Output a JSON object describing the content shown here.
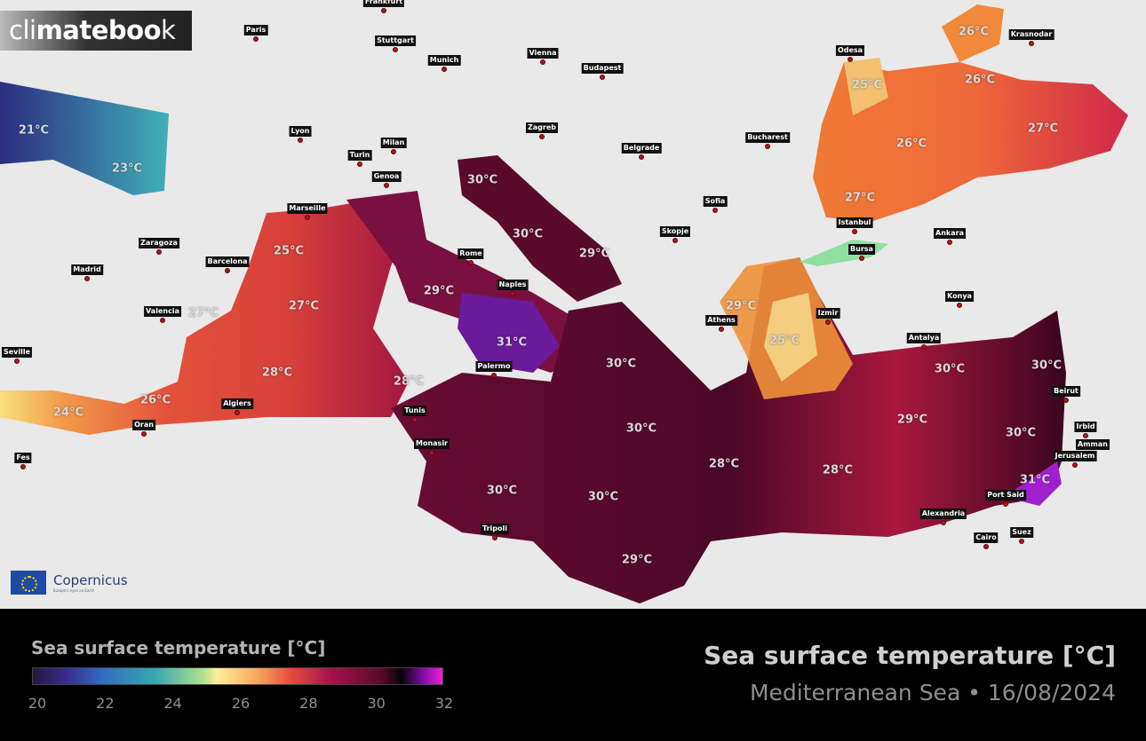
{
  "brand": {
    "logo_light": "cli",
    "logo_bold": "mateboo",
    "logo_end": "k",
    "partner": "Copernicus",
    "partner_tagline": "Europe's eyes on Earth"
  },
  "colors": {
    "accent_cold": "#2f6dc2",
    "accent_warm": "#e54b3c",
    "accent_hot": "#5a0a2a",
    "city_dot": "#b0161c"
  },
  "cities": [
    "Frankfurt",
    "Paris",
    "Stuttgart",
    "Munich",
    "Vienna",
    "Budapest",
    "Lyon",
    "Milan",
    "Turin",
    "Zagreb",
    "Belgrade",
    "Bucharest",
    "Genoa",
    "Odesa",
    "Krasnodar",
    "Sofia",
    "Skopje",
    "Istanbul",
    "Ankara",
    "Bursa",
    "Marseille",
    "Zaragoza",
    "Barcelona",
    "Madrid",
    "Rome",
    "Naples",
    "Valencia",
    "Konya",
    "Izmir",
    "Athens",
    "Antalya",
    "Seville",
    "Palermo",
    "Beirut",
    "Tunis",
    "Algiers",
    "Oran",
    "Irbid",
    "Amman",
    "Monasir",
    "Jerusalem",
    "Fes",
    "Port Said",
    "Alexandria",
    "Tripoli",
    "Cairo",
    "Suez"
  ],
  "temperatures": [
    "21°C",
    "23°C",
    "30°C",
    "30°C",
    "29°C",
    "25°C",
    "27°C",
    "27°C",
    "29°C",
    "31°C",
    "28°C",
    "28°C",
    "26°C",
    "24°C",
    "30°C",
    "30°C",
    "28°C",
    "30°C",
    "30°C",
    "29°C",
    "29°C",
    "25°C",
    "30°C",
    "30°C",
    "29°C",
    "30°C",
    "28°C",
    "31°C",
    "26°C",
    "25°C",
    "26°C",
    "26°C",
    "27°C",
    "27°C"
  ],
  "legend": {
    "title": "Sea surface temperature [°C]",
    "min": 20,
    "max": 32,
    "ticks": [
      "20",
      "22",
      "24",
      "26",
      "28",
      "30",
      "32"
    ],
    "colormap": [
      "#231a3a",
      "#2f6dc2",
      "#38a8b0",
      "#fff09a",
      "#e54b3c",
      "#a5104c",
      "#080308",
      "#f020d8"
    ]
  },
  "header": {
    "title": "Sea surface temperature [°C]",
    "subtitle": "Mediterranean Sea • 16/08/2024"
  }
}
